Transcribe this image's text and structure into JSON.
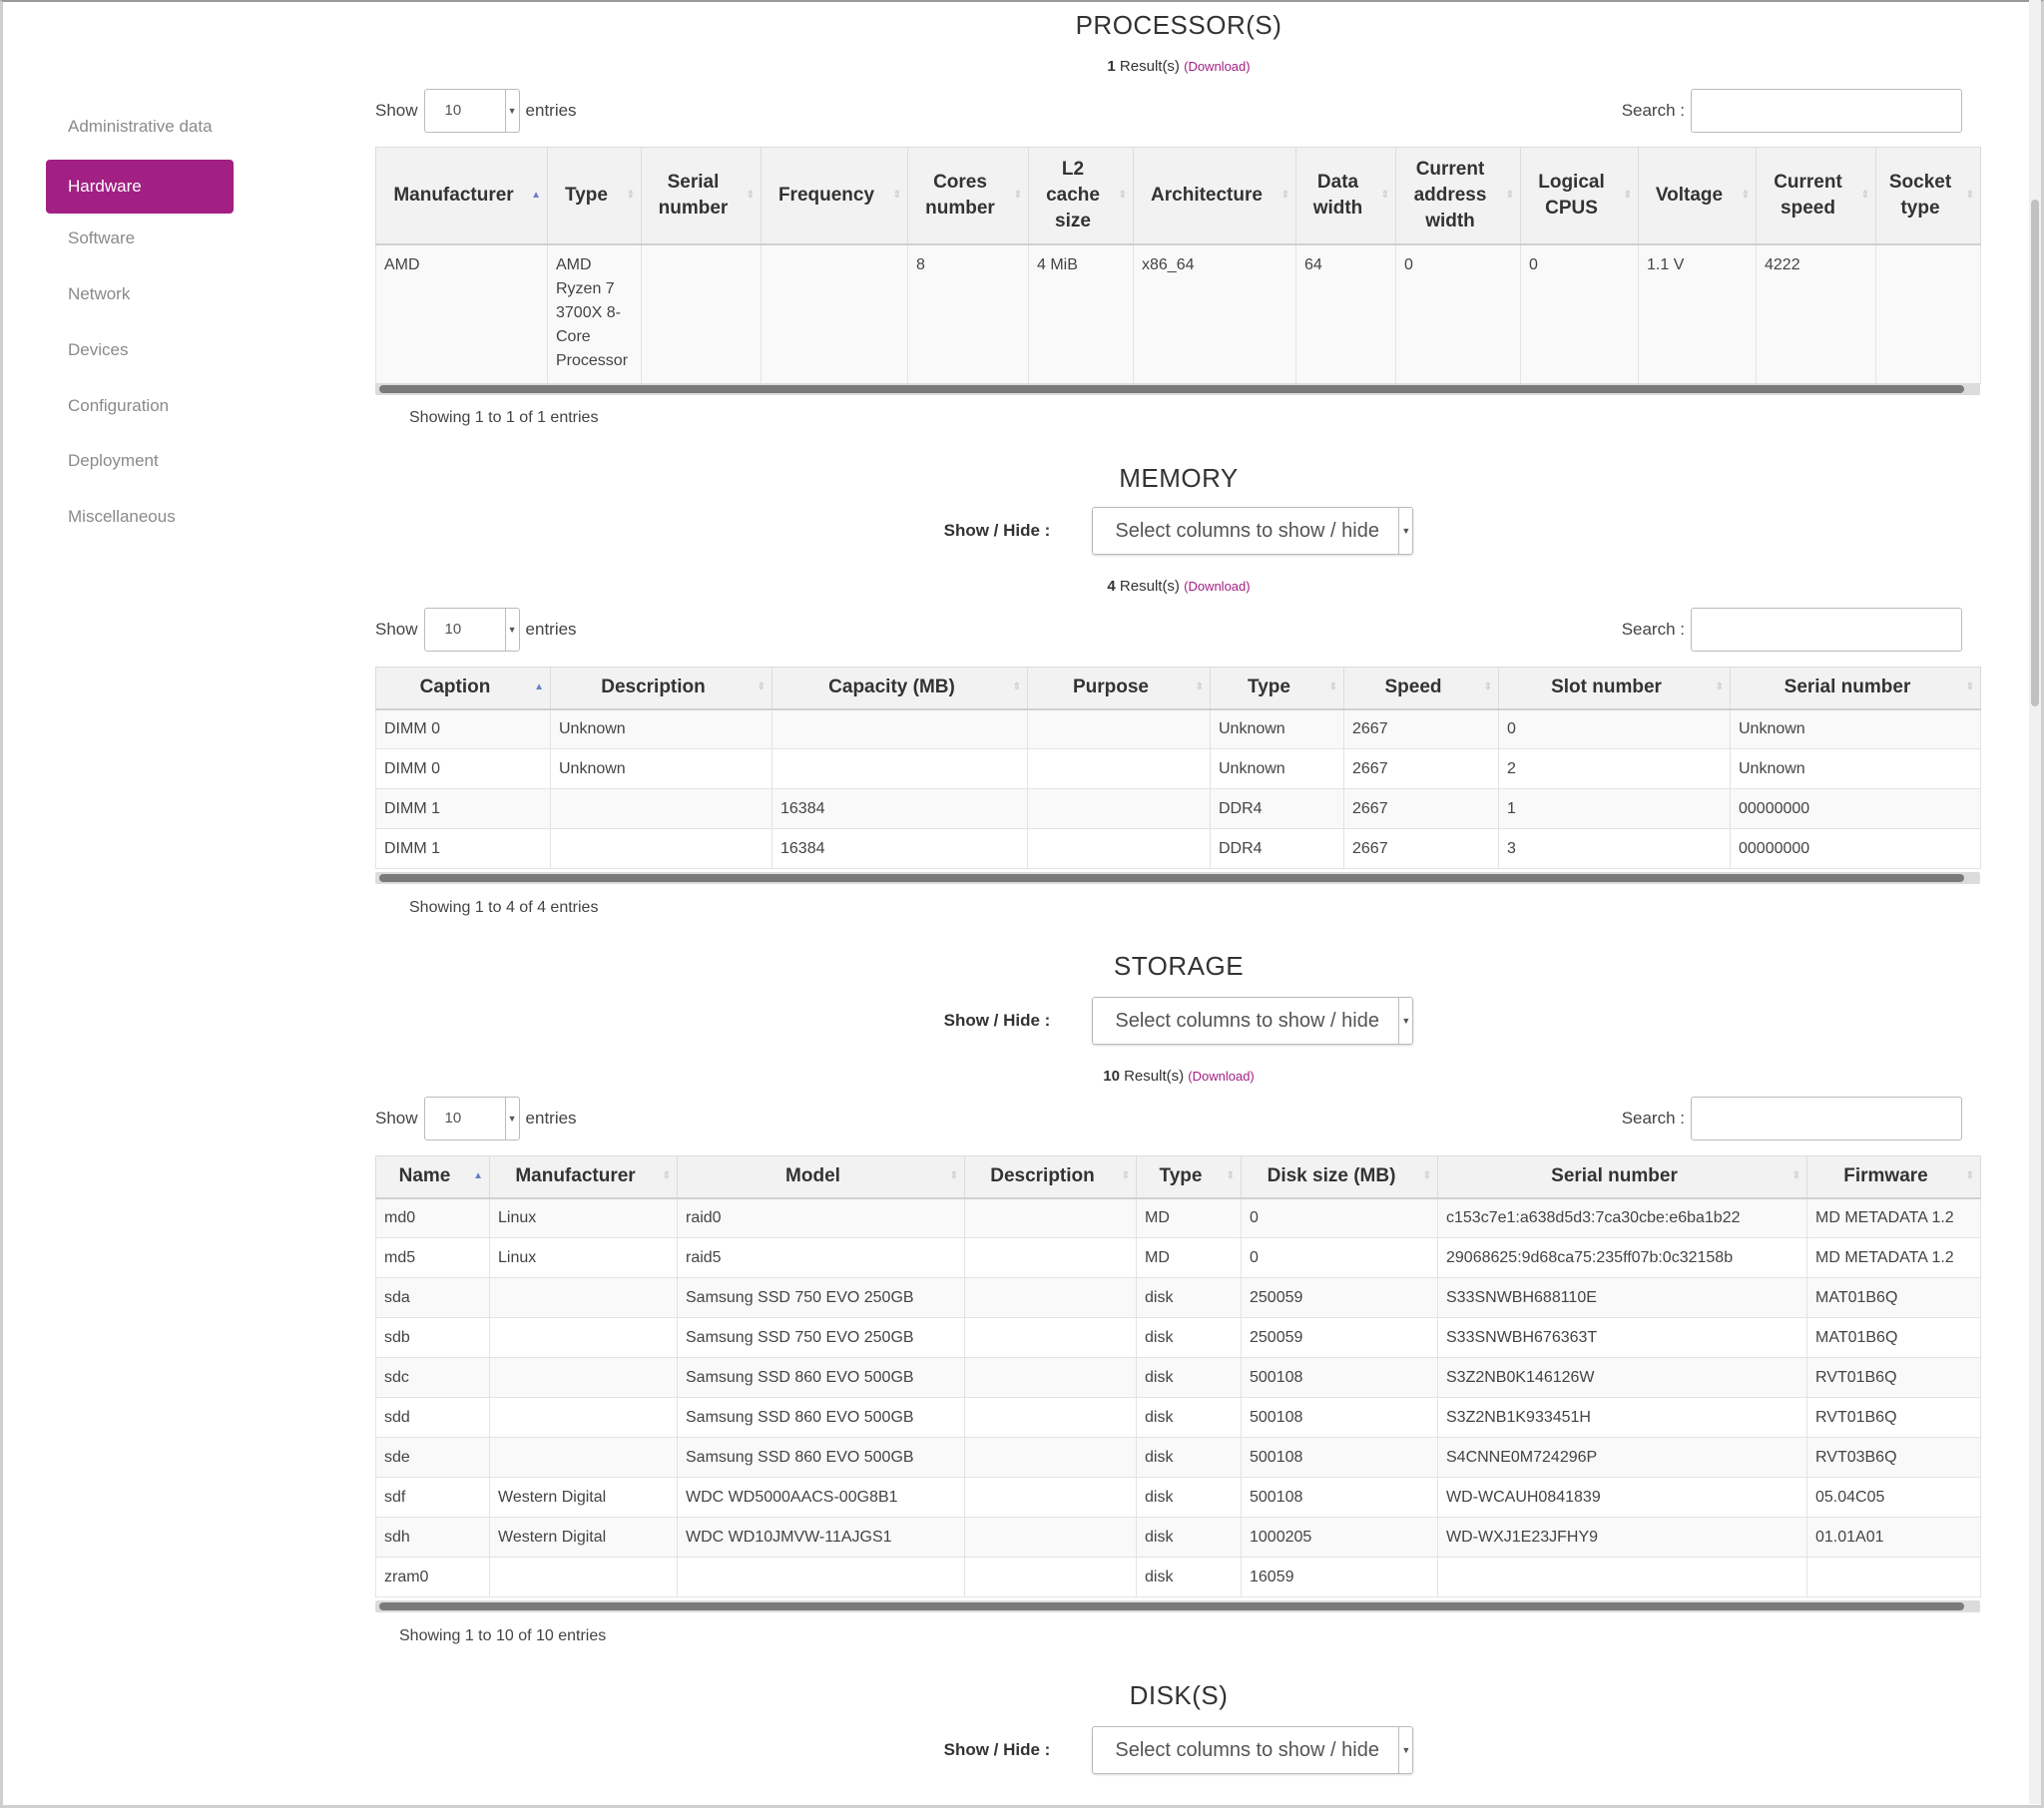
{
  "sidebar": {
    "items": [
      {
        "label": "Administrative data",
        "active": false
      },
      {
        "label": "Hardware",
        "active": true
      },
      {
        "label": "Software",
        "active": false
      },
      {
        "label": "Network",
        "active": false
      },
      {
        "label": "Devices",
        "active": false
      },
      {
        "label": "Configuration",
        "active": false
      },
      {
        "label": "Deployment",
        "active": false
      },
      {
        "label": "Miscellaneous",
        "active": false
      }
    ],
    "accent_color": "#a21f83"
  },
  "common": {
    "show": "Show",
    "entries": "entries",
    "search": "Search :",
    "show_hide": "Show / Hide :",
    "select_columns": "Select columns to show / hide",
    "download": "(Download)",
    "page_length": "10",
    "results_suffix": "Result(s)"
  },
  "processors": {
    "title": "PROCESSOR(S)",
    "count": "1",
    "info": "Showing 1 to 1 of 1 entries",
    "columns": [
      "Manufacturer",
      "Type",
      "Serial number",
      "Frequency",
      "Cores number",
      "L2 cache size",
      "Architecture",
      "Data width",
      "Current address width",
      "Logical CPUS",
      "Voltage",
      "Current speed",
      "Socket type"
    ],
    "rows": [
      [
        "AMD",
        "AMD Ryzen 7 3700X 8-Core Processor",
        "",
        "",
        "8",
        "4 MiB",
        "x86_64",
        "64",
        "0",
        "0",
        "1.1 V",
        "4222",
        ""
      ]
    ]
  },
  "memory": {
    "title": "MEMORY",
    "count": "4",
    "info": "Showing 1 to 4 of 4 entries",
    "columns": [
      "Caption",
      "Description",
      "Capacity (MB)",
      "Purpose",
      "Type",
      "Speed",
      "Slot number",
      "Serial number"
    ],
    "rows": [
      [
        "DIMM 0",
        "Unknown",
        "",
        "",
        "Unknown",
        "2667",
        "0",
        "Unknown"
      ],
      [
        "DIMM 0",
        "Unknown",
        "",
        "",
        "Unknown",
        "2667",
        "2",
        "Unknown"
      ],
      [
        "DIMM 1",
        "",
        "16384",
        "",
        "DDR4",
        "2667",
        "1",
        "00000000"
      ],
      [
        "DIMM 1",
        "",
        "16384",
        "",
        "DDR4",
        "2667",
        "3",
        "00000000"
      ]
    ]
  },
  "storage": {
    "title": "STORAGE",
    "count": "10",
    "info": "Showing 1 to 10 of 10 entries",
    "columns": [
      "Name",
      "Manufacturer",
      "Model",
      "Description",
      "Type",
      "Disk size (MB)",
      "Serial number",
      "Firmware"
    ],
    "rows": [
      [
        "md0",
        "Linux",
        "raid0",
        "",
        "MD",
        "0",
        "c153c7e1:a638d5d3:7ca30cbe:e6ba1b22",
        "MD METADATA 1.2"
      ],
      [
        "md5",
        "Linux",
        "raid5",
        "",
        "MD",
        "0",
        "29068625:9d68ca75:235ff07b:0c32158b",
        "MD METADATA 1.2"
      ],
      [
        "sda",
        "",
        "Samsung SSD 750 EVO 250GB",
        "",
        "disk",
        "250059",
        "S33SNWBH688110E",
        "MAT01B6Q"
      ],
      [
        "sdb",
        "",
        "Samsung SSD 750 EVO 250GB",
        "",
        "disk",
        "250059",
        "S33SNWBH676363T",
        "MAT01B6Q"
      ],
      [
        "sdc",
        "",
        "Samsung SSD 860 EVO 500GB",
        "",
        "disk",
        "500108",
        "S3Z2NB0K146126W",
        "RVT01B6Q"
      ],
      [
        "sdd",
        "",
        "Samsung SSD 860 EVO 500GB",
        "",
        "disk",
        "500108",
        "S3Z2NB1K933451H",
        "RVT01B6Q"
      ],
      [
        "sde",
        "",
        "Samsung SSD 860 EVO 500GB",
        "",
        "disk",
        "500108",
        "S4CNNE0M724296P",
        "RVT03B6Q"
      ],
      [
        "sdf",
        "Western Digital",
        "WDC WD5000AACS-00G8B1",
        "",
        "disk",
        "500108",
        "WD-WCAUH0841839",
        "05.04C05"
      ],
      [
        "sdh",
        "Western Digital",
        "WDC WD10JMVW-11AJGS1",
        "",
        "disk",
        "1000205",
        "WD-WXJ1E23JFHY9",
        "01.01A01"
      ],
      [
        "zram0",
        "",
        "",
        "",
        "disk",
        "16059",
        "",
        ""
      ]
    ]
  },
  "disks": {
    "title": "DISK(S)"
  }
}
